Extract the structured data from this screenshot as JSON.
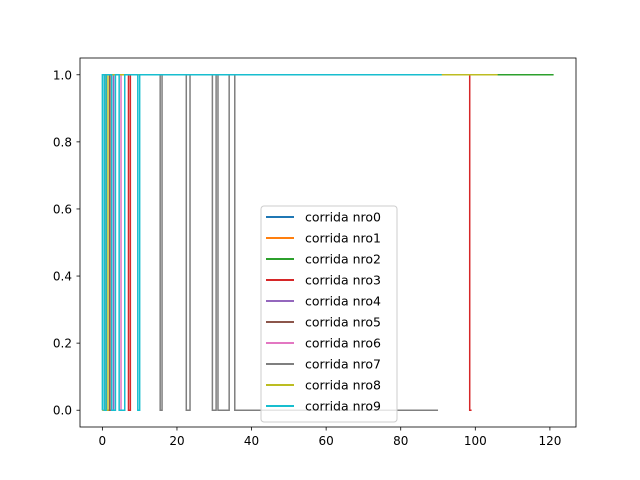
{
  "chart_data": {
    "type": "line",
    "title": "",
    "xlabel": "",
    "ylabel": "",
    "xlim": [
      -6,
      127
    ],
    "ylim": [
      -0.05,
      1.05
    ],
    "xticks": [
      0,
      20,
      40,
      60,
      80,
      100,
      120
    ],
    "yticks": [
      0.0,
      0.2,
      0.4,
      0.6,
      0.8,
      1.0
    ],
    "xtick_labels": [
      "0",
      "20",
      "40",
      "60",
      "80",
      "100",
      "120"
    ],
    "ytick_labels": [
      "0.0",
      "0.2",
      "0.4",
      "0.6",
      "0.8",
      "1.0"
    ],
    "grid": false,
    "legend_position": "lower center",
    "series": [
      {
        "name": "corrida nro0",
        "color": "#1f77b4",
        "x": [
          0,
          0.5,
          0.5,
          1.5,
          1.5,
          95
        ],
        "y": [
          0,
          0,
          1,
          1,
          1,
          1
        ],
        "step": true
      },
      {
        "name": "corrida nro1",
        "color": "#ff7f0e",
        "x": [
          0,
          1,
          1,
          2,
          2,
          90
        ],
        "y": [
          1,
          1,
          0,
          0,
          1,
          1
        ],
        "step": true
      },
      {
        "name": "corrida nro2",
        "color": "#2ca02c",
        "x": [
          0,
          1,
          1,
          121
        ],
        "y": [
          0,
          0,
          1,
          1
        ],
        "step": true
      },
      {
        "name": "corrida nro3",
        "color": "#d62728",
        "x": [
          0,
          7,
          7,
          7.5,
          7.5,
          98.5,
          98.5,
          99
        ],
        "y": [
          1,
          1,
          0,
          0,
          1,
          1,
          0,
          0
        ],
        "step": true
      },
      {
        "name": "corrida nro4",
        "color": "#9467bd",
        "x": [
          0,
          2,
          2,
          3,
          3,
          80
        ],
        "y": [
          1,
          1,
          0,
          0,
          1,
          1
        ],
        "step": true
      },
      {
        "name": "corrida nro5",
        "color": "#8c564b",
        "x": [
          0,
          1,
          1,
          2,
          2,
          80
        ],
        "y": [
          1,
          1,
          0,
          0,
          1,
          1
        ],
        "step": true
      },
      {
        "name": "corrida nro6",
        "color": "#e377c2",
        "x": [
          0,
          5,
          5,
          6,
          6,
          80
        ],
        "y": [
          1,
          1,
          0,
          0,
          1,
          1
        ],
        "step": true
      },
      {
        "name": "corrida nro7",
        "color": "#7f7f7f",
        "x": [
          0,
          15.5,
          15.5,
          16,
          16,
          22.5,
          22.5,
          23.5,
          23.5,
          29.5,
          29.5,
          30.5,
          30.5,
          31,
          31,
          34,
          34,
          35.5,
          35.5,
          90
        ],
        "y": [
          1,
          1,
          0,
          0,
          1,
          1,
          0,
          0,
          1,
          1,
          0,
          0,
          1,
          1,
          0,
          0,
          1,
          1,
          0,
          0
        ],
        "step": true
      },
      {
        "name": "corrida nro8",
        "color": "#bcbd22",
        "x": [
          0,
          1.5,
          1.5,
          106
        ],
        "y": [
          0,
          0,
          1,
          1
        ],
        "step": true
      },
      {
        "name": "corrida nro9",
        "color": "#17becf",
        "x": [
          0,
          0,
          0.5,
          0.5,
          1,
          1,
          2.5,
          2.5,
          3.5,
          3.5,
          4.5,
          4.5,
          6,
          6,
          9.5,
          9.5,
          10,
          10,
          91
        ],
        "y": [
          0,
          1,
          1,
          0,
          0,
          1,
          1,
          0,
          0,
          1,
          1,
          0,
          0,
          1,
          1,
          0,
          0,
          1,
          1
        ],
        "step": true
      }
    ]
  }
}
